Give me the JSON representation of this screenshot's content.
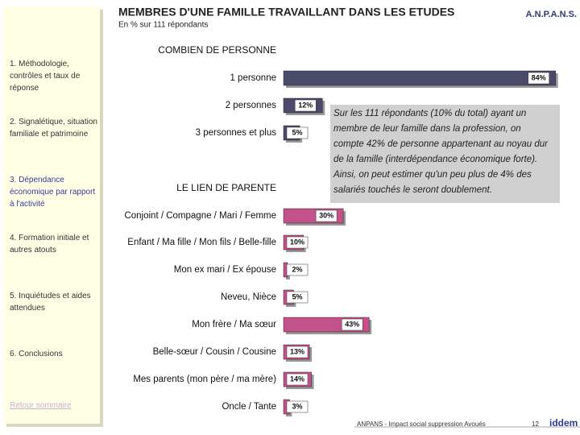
{
  "header": {
    "title": "MEMBRES D'UNE FAMILLE TRAVAILLANT DANS LES ETUDES",
    "subtitle": "En % sur 111 répondants",
    "brand": "A.N.P.A.N.S."
  },
  "sidebar": {
    "items": [
      "1. Méthodologie, contrôles et taux de réponse",
      "2. Signalétique, situation familiale et patrimoine",
      "3. Dépendance économique par rapport à l'activité",
      "4. Formation initiale et autres atouts",
      "5. Inquiétudes et aides attendues",
      "6. Conclusions"
    ],
    "back_link": "Retour sommaire"
  },
  "chart_data": [
    {
      "type": "bar",
      "title": "COMBIEN DE PERSONNE",
      "categories": [
        "1 personne",
        "2 personnes",
        "3 personnes et plus"
      ],
      "values": [
        84,
        12,
        5
      ],
      "value_labels": [
        "84%",
        "12%",
        "5%"
      ],
      "color": "#4b4a6b",
      "xlim": [
        0,
        100
      ]
    },
    {
      "type": "bar",
      "title": "LE LIEN DE PARENTE",
      "categories": [
        "Conjoint / Compagne / Mari / Femme",
        "Enfant / Ma fille / Mon fils / Belle-fille",
        "Mon ex mari / Ex épouse",
        "Neveu, Nièce",
        "Mon frère / Ma sœur",
        "Belle-sœur / Cousin / Cousine",
        "Mes parents (mon père / ma mère)",
        "Oncle / Tante"
      ],
      "values": [
        30,
        10,
        2,
        5,
        43,
        13,
        14,
        3
      ],
      "value_labels": [
        "30%",
        "10%",
        "2%",
        "5%",
        "43%",
        "13%",
        "14%",
        "3%"
      ],
      "color": "#c4528a",
      "xlim": [
        0,
        100
      ]
    }
  ],
  "note": "Sur les 111 répondants (10% du total) ayant un membre de leur famille dans la profession, on compte 42% de personne appartenant au noyau dur de la famille (interdépendance économique forte). Ainsi, on peut estimer qu'un peu plus de 4% des salariés touchés le seront doublement.",
  "footer": {
    "source": "ANPANS - Impact social suppression Avoués",
    "page": "12",
    "logo": "iddem"
  }
}
